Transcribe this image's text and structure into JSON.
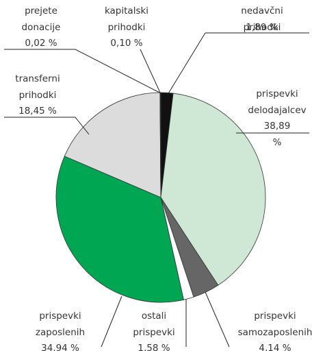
{
  "chart_data": {
    "type": "pie",
    "categories": [
      "nedavčni prihodki",
      "prispevki\ndelodajalcev",
      "prispevki\nsamozaposlenih",
      "ostali\nprispevki",
      "prispevki\nzaposlenih",
      "transferni\nprihodki",
      "prejete\ndonacije",
      "kapitalski\nprihodki"
    ],
    "values": [
      1.89,
      38.89,
      4.14,
      1.58,
      34.94,
      18.45,
      0.02,
      0.1
    ],
    "value_labels": [
      "1,89 %",
      "38,89 %",
      "4,14 %",
      "1,58 %",
      "34,94 %",
      "18,45 %",
      "0,02 %",
      "0,10 %"
    ],
    "colors": [
      "#111111",
      "#cfe8d6",
      "#666666",
      "#ffffff",
      "#00a651",
      "#dcdcdc",
      "#111111",
      "#111111"
    ]
  }
}
